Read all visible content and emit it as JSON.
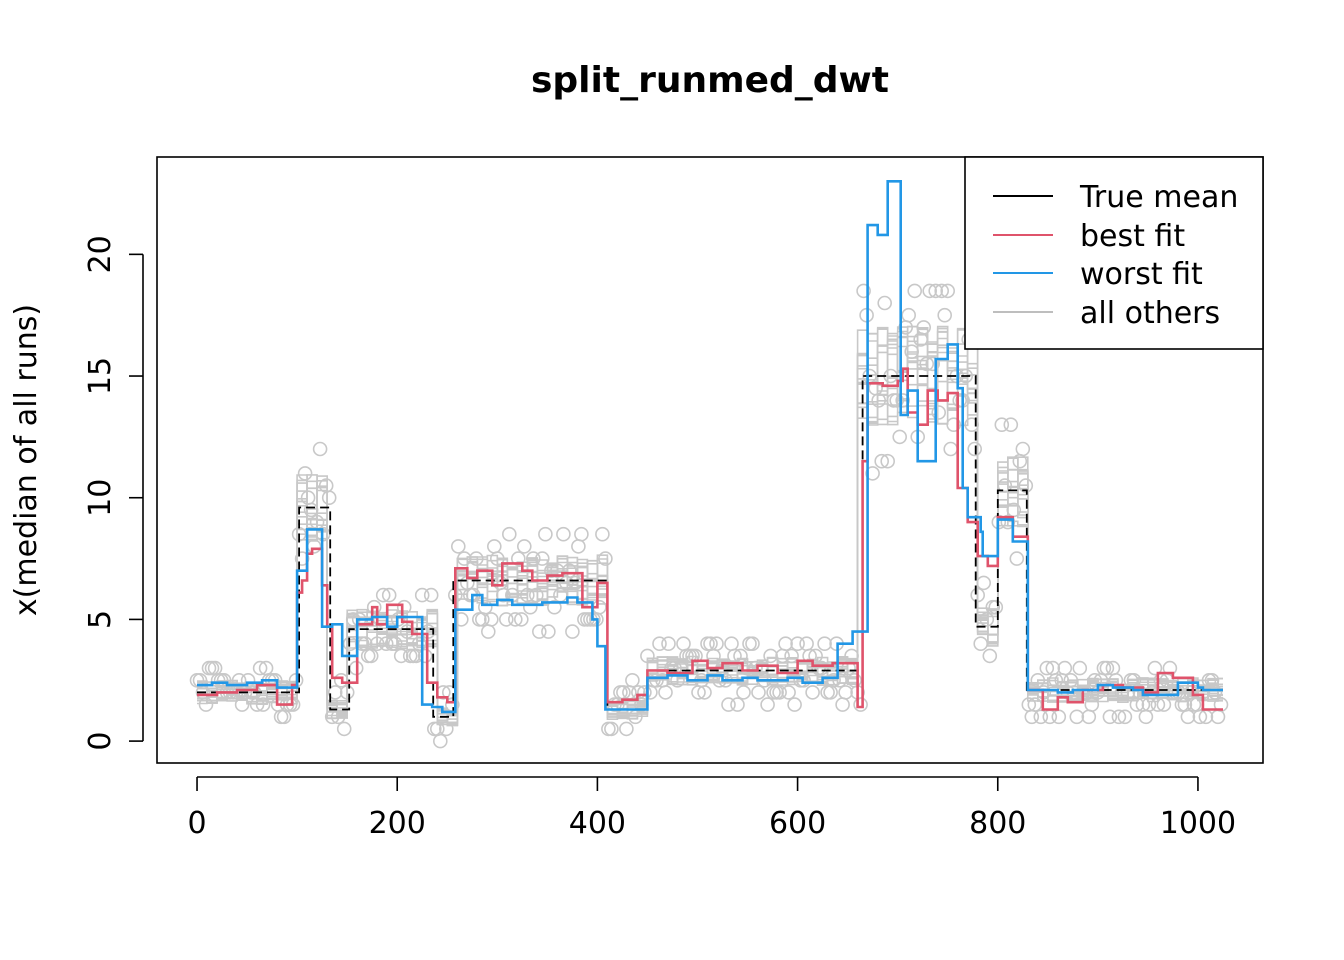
{
  "chart_data": {
    "type": "line",
    "title": "split_runmed_dwt",
    "xlabel": "",
    "ylabel": "x(median of all runs)",
    "xlim": [
      -40,
      1065
    ],
    "ylim": [
      -0.9,
      24
    ],
    "x_ticks": [
      0,
      200,
      400,
      600,
      800,
      1000
    ],
    "x_tick_labels": [
      "0",
      "200",
      "400",
      "600",
      "800",
      "1000"
    ],
    "y_ticks": [
      0,
      5,
      10,
      15,
      20
    ],
    "y_tick_labels": [
      "0",
      "5",
      "10",
      "15",
      "20"
    ],
    "legend": {
      "position": "top-right",
      "entries": [
        {
          "label": "True mean",
          "color": "#000000"
        },
        {
          "label": "best fit",
          "color": "#DF536B"
        },
        {
          "label": "worst fit",
          "color": "#2297E6"
        },
        {
          "label": "all others",
          "color": "#BEBEBE"
        }
      ]
    },
    "colors": {
      "true_mean": "#000000",
      "best_fit": "#DF536B",
      "worst_fit": "#2297E6",
      "others": "#C8C8C8"
    },
    "series": [
      {
        "name": "True mean",
        "style": "dash-step",
        "points": [
          [
            0,
            2.0
          ],
          [
            102,
            2.0
          ],
          [
            102,
            9.6
          ],
          [
            133,
            9.6
          ],
          [
            133,
            1.3
          ],
          [
            152,
            1.3
          ],
          [
            152,
            4.6
          ],
          [
            236,
            4.6
          ],
          [
            236,
            1.0
          ],
          [
            256,
            1.0
          ],
          [
            256,
            6.6
          ],
          [
            410,
            6.6
          ],
          [
            410,
            1.3
          ],
          [
            450,
            1.3
          ],
          [
            450,
            2.9
          ],
          [
            665,
            2.9
          ],
          [
            665,
            15.0
          ],
          [
            778,
            15.0
          ],
          [
            778,
            4.7
          ],
          [
            800,
            4.7
          ],
          [
            800,
            10.3
          ],
          [
            829,
            10.3
          ],
          [
            829,
            2.1
          ],
          [
            1025,
            2.1
          ]
        ]
      },
      {
        "name": "best fit",
        "style": "step",
        "points": [
          [
            0,
            1.9
          ],
          [
            20,
            1.9
          ],
          [
            20,
            2.0
          ],
          [
            40,
            2.0
          ],
          [
            40,
            2.1
          ],
          [
            60,
            2.1
          ],
          [
            60,
            2.3
          ],
          [
            80,
            2.3
          ],
          [
            80,
            1.5
          ],
          [
            95,
            1.5
          ],
          [
            95,
            2.3
          ],
          [
            100,
            2.3
          ],
          [
            100,
            6.1
          ],
          [
            105,
            6.1
          ],
          [
            105,
            6.6
          ],
          [
            110,
            6.6
          ],
          [
            110,
            7.7
          ],
          [
            115,
            7.7
          ],
          [
            115,
            7.9
          ],
          [
            125,
            7.9
          ],
          [
            125,
            6.4
          ],
          [
            130,
            6.4
          ],
          [
            130,
            4.7
          ],
          [
            135,
            4.7
          ],
          [
            135,
            2.6
          ],
          [
            145,
            2.6
          ],
          [
            145,
            2.4
          ],
          [
            160,
            2.4
          ],
          [
            160,
            4.8
          ],
          [
            175,
            4.8
          ],
          [
            175,
            5.5
          ],
          [
            180,
            5.5
          ],
          [
            180,
            4.8
          ],
          [
            190,
            4.8
          ],
          [
            190,
            5.6
          ],
          [
            205,
            5.6
          ],
          [
            205,
            4.9
          ],
          [
            215,
            4.9
          ],
          [
            215,
            4.4
          ],
          [
            230,
            4.4
          ],
          [
            230,
            2.4
          ],
          [
            240,
            2.4
          ],
          [
            240,
            1.8
          ],
          [
            250,
            1.8
          ],
          [
            250,
            1.6
          ],
          [
            258,
            1.6
          ],
          [
            258,
            7.1
          ],
          [
            270,
            7.1
          ],
          [
            270,
            6.7
          ],
          [
            280,
            6.7
          ],
          [
            280,
            7.0
          ],
          [
            295,
            7.0
          ],
          [
            295,
            6.4
          ],
          [
            305,
            6.4
          ],
          [
            305,
            7.3
          ],
          [
            325,
            7.3
          ],
          [
            325,
            7.0
          ],
          [
            335,
            7.0
          ],
          [
            335,
            6.6
          ],
          [
            350,
            6.6
          ],
          [
            350,
            6.8
          ],
          [
            365,
            6.8
          ],
          [
            365,
            6.9
          ],
          [
            385,
            6.9
          ],
          [
            385,
            5.5
          ],
          [
            400,
            5.5
          ],
          [
            400,
            6.5
          ],
          [
            410,
            6.5
          ],
          [
            410,
            1.6
          ],
          [
            425,
            1.6
          ],
          [
            425,
            1.7
          ],
          [
            440,
            1.7
          ],
          [
            440,
            1.9
          ],
          [
            450,
            1.9
          ],
          [
            450,
            2.9
          ],
          [
            470,
            2.9
          ],
          [
            470,
            2.8
          ],
          [
            495,
            2.8
          ],
          [
            495,
            3.3
          ],
          [
            510,
            3.3
          ],
          [
            510,
            3.0
          ],
          [
            525,
            3.0
          ],
          [
            525,
            3.2
          ],
          [
            545,
            3.2
          ],
          [
            545,
            2.9
          ],
          [
            560,
            2.9
          ],
          [
            560,
            3.1
          ],
          [
            580,
            3.1
          ],
          [
            580,
            2.8
          ],
          [
            600,
            2.8
          ],
          [
            600,
            3.3
          ],
          [
            615,
            3.3
          ],
          [
            615,
            3.1
          ],
          [
            635,
            3.1
          ],
          [
            635,
            3.2
          ],
          [
            660,
            3.2
          ],
          [
            660,
            1.4
          ],
          [
            665,
            1.4
          ],
          [
            665,
            11.5
          ],
          [
            670,
            11.5
          ],
          [
            670,
            14.7
          ],
          [
            685,
            14.7
          ],
          [
            685,
            14.6
          ],
          [
            700,
            14.6
          ],
          [
            700,
            14.8
          ],
          [
            705,
            14.8
          ],
          [
            705,
            15.3
          ],
          [
            710,
            15.3
          ],
          [
            710,
            13.5
          ],
          [
            720,
            13.5
          ],
          [
            720,
            13.0
          ],
          [
            730,
            13.0
          ],
          [
            730,
            14.4
          ],
          [
            740,
            14.4
          ],
          [
            740,
            14.0
          ],
          [
            750,
            14.0
          ],
          [
            750,
            14.3
          ],
          [
            760,
            14.3
          ],
          [
            760,
            10.4
          ],
          [
            770,
            10.4
          ],
          [
            770,
            9.0
          ],
          [
            780,
            9.0
          ],
          [
            780,
            7.6
          ],
          [
            790,
            7.6
          ],
          [
            790,
            7.2
          ],
          [
            800,
            7.2
          ],
          [
            800,
            9.2
          ],
          [
            815,
            9.2
          ],
          [
            815,
            8.4
          ],
          [
            830,
            8.4
          ],
          [
            830,
            2.1
          ],
          [
            845,
            2.1
          ],
          [
            845,
            1.3
          ],
          [
            860,
            1.3
          ],
          [
            860,
            1.8
          ],
          [
            870,
            1.8
          ],
          [
            870,
            1.6
          ],
          [
            885,
            1.6
          ],
          [
            885,
            2.1
          ],
          [
            905,
            2.1
          ],
          [
            905,
            2.3
          ],
          [
            925,
            2.3
          ],
          [
            925,
            2.2
          ],
          [
            945,
            2.2
          ],
          [
            945,
            2.0
          ],
          [
            960,
            2.0
          ],
          [
            960,
            2.8
          ],
          [
            975,
            2.8
          ],
          [
            975,
            2.6
          ],
          [
            995,
            2.6
          ],
          [
            995,
            1.9
          ],
          [
            1005,
            1.9
          ],
          [
            1005,
            1.3
          ],
          [
            1025,
            1.3
          ]
        ]
      },
      {
        "name": "worst fit",
        "style": "step",
        "points": [
          [
            0,
            2.3
          ],
          [
            15,
            2.3
          ],
          [
            15,
            2.4
          ],
          [
            30,
            2.4
          ],
          [
            30,
            2.3
          ],
          [
            50,
            2.3
          ],
          [
            50,
            2.4
          ],
          [
            65,
            2.4
          ],
          [
            65,
            2.5
          ],
          [
            80,
            2.5
          ],
          [
            80,
            2.2
          ],
          [
            100,
            2.2
          ],
          [
            100,
            7.0
          ],
          [
            110,
            7.0
          ],
          [
            110,
            8.7
          ],
          [
            125,
            8.7
          ],
          [
            125,
            4.7
          ],
          [
            135,
            4.7
          ],
          [
            135,
            4.8
          ],
          [
            145,
            4.8
          ],
          [
            145,
            3.5
          ],
          [
            160,
            3.5
          ],
          [
            160,
            5.0
          ],
          [
            175,
            5.0
          ],
          [
            175,
            5.1
          ],
          [
            190,
            5.1
          ],
          [
            190,
            4.7
          ],
          [
            200,
            4.7
          ],
          [
            200,
            5.1
          ],
          [
            225,
            5.1
          ],
          [
            225,
            1.5
          ],
          [
            235,
            1.5
          ],
          [
            235,
            1.4
          ],
          [
            245,
            1.4
          ],
          [
            245,
            1.2
          ],
          [
            258,
            1.2
          ],
          [
            258,
            5.4
          ],
          [
            275,
            5.4
          ],
          [
            275,
            6.0
          ],
          [
            285,
            6.0
          ],
          [
            285,
            5.6
          ],
          [
            300,
            5.6
          ],
          [
            300,
            5.8
          ],
          [
            315,
            5.8
          ],
          [
            315,
            5.6
          ],
          [
            345,
            5.6
          ],
          [
            345,
            5.7
          ],
          [
            370,
            5.7
          ],
          [
            370,
            5.9
          ],
          [
            380,
            5.9
          ],
          [
            380,
            5.7
          ],
          [
            395,
            5.7
          ],
          [
            395,
            5.0
          ],
          [
            400,
            5.0
          ],
          [
            400,
            3.9
          ],
          [
            408,
            3.9
          ],
          [
            408,
            1.3
          ],
          [
            450,
            1.3
          ],
          [
            450,
            2.6
          ],
          [
            470,
            2.6
          ],
          [
            470,
            2.7
          ],
          [
            490,
            2.7
          ],
          [
            490,
            2.5
          ],
          [
            510,
            2.5
          ],
          [
            510,
            2.7
          ],
          [
            525,
            2.7
          ],
          [
            525,
            2.5
          ],
          [
            545,
            2.5
          ],
          [
            545,
            2.6
          ],
          [
            560,
            2.6
          ],
          [
            560,
            2.5
          ],
          [
            590,
            2.5
          ],
          [
            590,
            2.6
          ],
          [
            605,
            2.6
          ],
          [
            605,
            2.4
          ],
          [
            625,
            2.4
          ],
          [
            625,
            2.6
          ],
          [
            640,
            2.6
          ],
          [
            640,
            4.0
          ],
          [
            655,
            4.0
          ],
          [
            655,
            4.5
          ],
          [
            670,
            4.5
          ],
          [
            670,
            21.2
          ],
          [
            680,
            21.2
          ],
          [
            680,
            20.8
          ],
          [
            690,
            20.8
          ],
          [
            690,
            23.0
          ],
          [
            703,
            23.0
          ],
          [
            703,
            13.4
          ],
          [
            710,
            13.4
          ],
          [
            710,
            14.4
          ],
          [
            720,
            14.4
          ],
          [
            720,
            11.5
          ],
          [
            738,
            11.5
          ],
          [
            738,
            15.7
          ],
          [
            750,
            15.7
          ],
          [
            750,
            16.3
          ],
          [
            760,
            16.3
          ],
          [
            760,
            14.5
          ],
          [
            765,
            14.5
          ],
          [
            765,
            10.4
          ],
          [
            770,
            10.4
          ],
          [
            770,
            9.2
          ],
          [
            783,
            9.2
          ],
          [
            783,
            8.6
          ],
          [
            785,
            8.6
          ],
          [
            785,
            7.6
          ],
          [
            800,
            7.6
          ],
          [
            800,
            9.1
          ],
          [
            815,
            9.1
          ],
          [
            815,
            8.2
          ],
          [
            830,
            8.2
          ],
          [
            830,
            2.1
          ],
          [
            860,
            2.1
          ],
          [
            860,
            2.0
          ],
          [
            875,
            2.0
          ],
          [
            875,
            2.1
          ],
          [
            900,
            2.1
          ],
          [
            900,
            2.3
          ],
          [
            915,
            2.3
          ],
          [
            915,
            2.2
          ],
          [
            935,
            2.2
          ],
          [
            935,
            2.1
          ],
          [
            945,
            2.1
          ],
          [
            945,
            1.9
          ],
          [
            960,
            1.9
          ],
          [
            960,
            1.9
          ],
          [
            980,
            1.9
          ],
          [
            980,
            2.4
          ],
          [
            1000,
            2.4
          ],
          [
            1000,
            2.2
          ],
          [
            1005,
            2.2
          ],
          [
            1005,
            2.1
          ],
          [
            1025,
            2.1
          ]
        ]
      }
    ]
  }
}
